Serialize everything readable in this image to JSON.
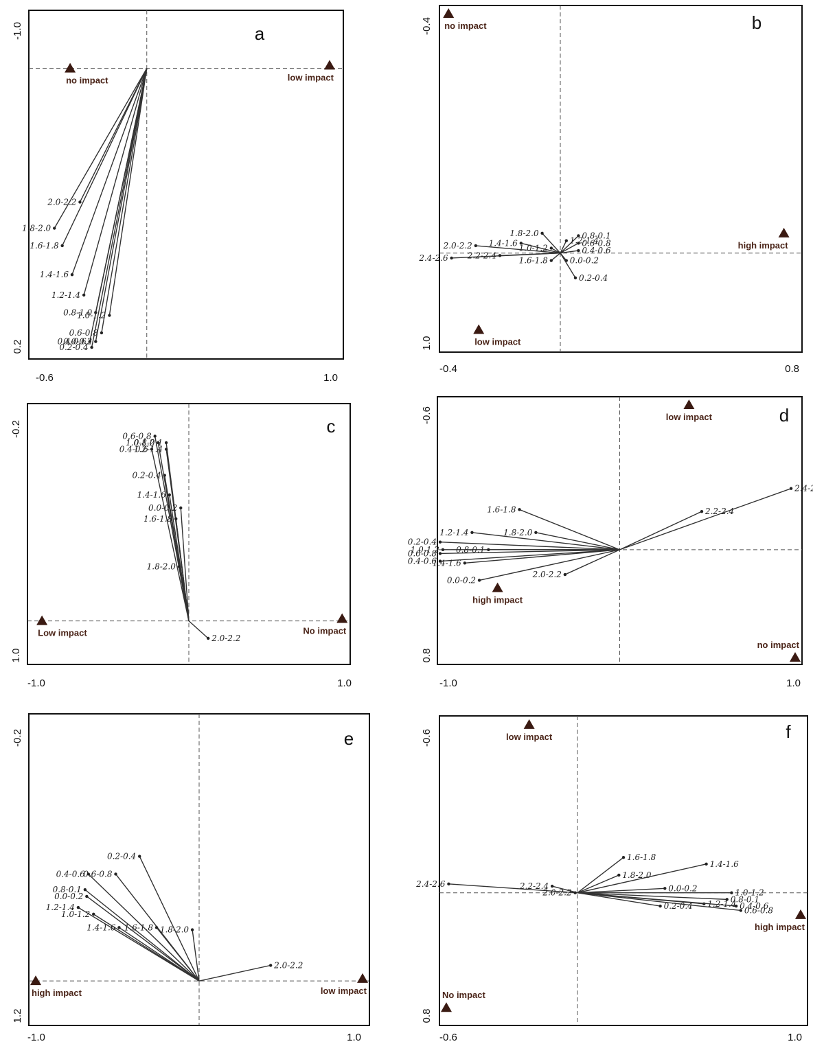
{
  "chart_data": [
    {
      "panel": "a",
      "type": "scatter",
      "xlim": [
        -0.6,
        1.0
      ],
      "ylim": [
        -1.0,
        0.2
      ],
      "x_tick_labels": [
        "-0.6",
        "1.0"
      ],
      "y_tick_labels": [
        "-1.0",
        "0.2"
      ],
      "origin": [
        0.0,
        0.0
      ],
      "treatments": [
        {
          "label": "no impact",
          "x": -0.39,
          "y": 0.0
        },
        {
          "label": "low impact",
          "x": 0.93,
          "y": 0.01
        }
      ],
      "vectors": [
        {
          "label": "2.0-2.2",
          "x": -0.34,
          "y": -0.46
        },
        {
          "label": "1.8-2.0",
          "x": -0.47,
          "y": -0.55
        },
        {
          "label": "1.6-1.8",
          "x": -0.43,
          "y": -0.61
        },
        {
          "label": "1.4-1.6",
          "x": -0.38,
          "y": -0.71
        },
        {
          "label": "1.2-1.4",
          "x": -0.32,
          "y": -0.78
        },
        {
          "label": "1.0-1.2",
          "x": -0.19,
          "y": -0.85
        },
        {
          "label": "0.8-1.0",
          "x": -0.26,
          "y": -0.84
        },
        {
          "label": "0.6-0.8",
          "x": -0.23,
          "y": -0.91
        },
        {
          "label": "0.4-0.6",
          "x": -0.29,
          "y": -0.94
        },
        {
          "label": "0.0-0.2",
          "x": -0.26,
          "y": -0.94
        },
        {
          "label": "0.2-0.4",
          "x": -0.28,
          "y": -0.96
        }
      ]
    },
    {
      "panel": "b",
      "type": "scatter",
      "xlim": [
        -0.4,
        0.8
      ],
      "ylim": [
        -0.4,
        1.0
      ],
      "x_tick_labels": [
        "-0.4",
        "0.8"
      ],
      "y_tick_labels": [
        "-0.4",
        "1.0"
      ],
      "origin": [
        0.0,
        0.0
      ],
      "treatments": [
        {
          "label": "no impact",
          "x": -0.37,
          "y": 0.97
        },
        {
          "label": "low impact",
          "x": -0.27,
          "y": -0.31
        },
        {
          "label": "high impact",
          "x": 0.74,
          "y": 0.08
        }
      ],
      "vectors": [
        {
          "label": "1.8-2.0",
          "x": -0.06,
          "y": 0.08
        },
        {
          "label": "0.8-0.1",
          "x": 0.06,
          "y": 0.07
        },
        {
          "label": "1.2-1.4",
          "x": 0.02,
          "y": 0.05
        },
        {
          "label": "0.6-0.8",
          "x": 0.06,
          "y": 0.04
        },
        {
          "label": "1.4-1.6",
          "x": -0.13,
          "y": 0.04
        },
        {
          "label": "1.0-1.2",
          "x": -0.03,
          "y": 0.02
        },
        {
          "label": "2.0-2.2",
          "x": -0.28,
          "y": 0.03
        },
        {
          "label": "0.4-0.6",
          "x": 0.06,
          "y": 0.01
        },
        {
          "label": "2.4-2.6",
          "x": -0.36,
          "y": -0.02
        },
        {
          "label": "2.2-2.4",
          "x": -0.2,
          "y": -0.01
        },
        {
          "label": "0.0-0.2",
          "x": 0.02,
          "y": -0.03
        },
        {
          "label": "1.6-1.8",
          "x": -0.03,
          "y": -0.03
        },
        {
          "label": "0.2-0.4",
          "x": 0.05,
          "y": -0.1
        }
      ]
    },
    {
      "panel": "c",
      "type": "scatter",
      "xlim": [
        -1.0,
        1.0
      ],
      "ylim": [
        -0.2,
        1.0
      ],
      "x_tick_labels": [
        "-1.0",
        "1.0"
      ],
      "y_tick_labels": [
        "-0.2",
        "1.0"
      ],
      "origin": [
        0.0,
        0.0
      ],
      "treatments": [
        {
          "label": "Low impact",
          "x": -0.91,
          "y": 0.0
        },
        {
          "label": "No impact",
          "x": 0.95,
          "y": 0.01
        }
      ],
      "vectors": [
        {
          "label": "0.6-0.8",
          "x": -0.21,
          "y": 0.85
        },
        {
          "label": "1.0-1.2",
          "x": -0.19,
          "y": 0.82
        },
        {
          "label": "0.8-0.1",
          "x": -0.14,
          "y": 0.82
        },
        {
          "label": "0.4-0.6",
          "x": -0.23,
          "y": 0.79
        },
        {
          "label": "1.2-1.4",
          "x": -0.14,
          "y": 0.79
        },
        {
          "label": "0.2-0.4",
          "x": -0.15,
          "y": 0.67
        },
        {
          "label": "1.4-1.6",
          "x": -0.12,
          "y": 0.58
        },
        {
          "label": "0.0-0.2",
          "x": -0.05,
          "y": 0.52
        },
        {
          "label": "1.6-1.8",
          "x": -0.08,
          "y": 0.47
        },
        {
          "label": "1.8-2.0",
          "x": -0.06,
          "y": 0.25
        },
        {
          "label": "2.0-2.2",
          "x": 0.12,
          "y": -0.08
        }
      ]
    },
    {
      "panel": "d",
      "type": "scatter",
      "xlim": [
        -1.0,
        1.0
      ],
      "ylim": [
        -0.6,
        0.8
      ],
      "x_tick_labels": [
        "-1.0",
        "1.0"
      ],
      "y_tick_labels": [
        "-0.6",
        "0.8"
      ],
      "origin": [
        0.0,
        0.0
      ],
      "treatments": [
        {
          "label": "low impact",
          "x": 0.38,
          "y": 0.77
        },
        {
          "label": "high impact",
          "x": -0.67,
          "y": -0.2
        },
        {
          "label": "no impact",
          "x": 1.95,
          "y": -0.6
        }
      ],
      "vectors": [
        {
          "label": "1.6-1.8",
          "x": -0.55,
          "y": 0.21
        },
        {
          "label": "1.8-2.0",
          "x": -0.46,
          "y": 0.09
        },
        {
          "label": "2.2-2.4",
          "x": 0.45,
          "y": 0.2
        },
        {
          "label": "2.4-2.6",
          "x": 0.94,
          "y": 0.32
        },
        {
          "label": "1.2-1.4",
          "x": -0.81,
          "y": 0.09
        },
        {
          "label": "0.2-0.4",
          "x": -1.03,
          "y": 0.04
        },
        {
          "label": "1.0-1.2",
          "x": -0.97,
          "y": 0.0
        },
        {
          "label": "0.8-0.1",
          "x": -0.72,
          "y": 0.0
        },
        {
          "label": "0.6-0.8",
          "x": -1.03,
          "y": -0.02
        },
        {
          "label": "0.4-0.6",
          "x": -1.12,
          "y": -0.06
        },
        {
          "label": "1.4-1.6",
          "x": -0.85,
          "y": -0.07
        },
        {
          "label": "2.0-2.2",
          "x": -0.3,
          "y": -0.13
        },
        {
          "label": "0.0-0.2",
          "x": -0.77,
          "y": -0.16
        }
      ]
    },
    {
      "panel": "e",
      "type": "scatter",
      "xlim": [
        -1.0,
        1.0
      ],
      "ylim": [
        -0.2,
        1.2
      ],
      "x_tick_labels": [
        "-1.0",
        "1.0"
      ],
      "y_tick_labels": [
        "-0.2",
        "1.2"
      ],
      "origin": [
        0.0,
        0.0
      ],
      "treatments": [
        {
          "label": "high impact",
          "x": -0.97,
          "y": 0.0
        },
        {
          "label": "low impact",
          "x": 0.97,
          "y": 0.01
        }
      ],
      "vectors": [
        {
          "label": "0.2-0.4",
          "x": -0.35,
          "y": 0.56
        },
        {
          "label": "0.4-0.6",
          "x": -0.65,
          "y": 0.48
        },
        {
          "label": "0.6-0.8",
          "x": -0.49,
          "y": 0.48
        },
        {
          "label": "0.8-0.1",
          "x": -0.67,
          "y": 0.41
        },
        {
          "label": "0.0-0.2",
          "x": -0.66,
          "y": 0.38
        },
        {
          "label": "1.2-1.4",
          "x": -0.71,
          "y": 0.33
        },
        {
          "label": "1.0-1.2",
          "x": -0.62,
          "y": 0.3
        },
        {
          "label": "1.4-1.6",
          "x": -0.47,
          "y": 0.24
        },
        {
          "label": "1.6-1.8",
          "x": -0.25,
          "y": 0.24
        },
        {
          "label": "1.8-2.0",
          "x": -0.04,
          "y": 0.23
        },
        {
          "label": "2.0-2.2",
          "x": 0.42,
          "y": 0.07
        }
      ]
    },
    {
      "panel": "f",
      "type": "scatter",
      "xlim": [
        -0.6,
        1.0
      ],
      "ylim": [
        -0.6,
        0.8
      ],
      "x_tick_labels": [
        "-0.6",
        "1.0"
      ],
      "y_tick_labels": [
        "-0.6",
        "0.8"
      ],
      "origin": [
        0.0,
        0.0
      ],
      "treatments": [
        {
          "label": "low impact",
          "x": -0.21,
          "y": 0.76
        },
        {
          "label": "high impact",
          "x": 1.01,
          "y": -0.1
        },
        {
          "label": "No impact",
          "x": -0.76,
          "y": -0.52
        }
      ],
      "vectors": [
        {
          "label": "1.6-1.8",
          "x": 0.2,
          "y": 0.16
        },
        {
          "label": "1.8-2.0",
          "x": 0.18,
          "y": 0.08
        },
        {
          "label": "1.4-1.6",
          "x": 0.56,
          "y": 0.13
        },
        {
          "label": "2.2-2.4",
          "x": -0.11,
          "y": 0.03
        },
        {
          "label": "2.4-2.6",
          "x": -0.56,
          "y": 0.04
        },
        {
          "label": "0.0-0.2",
          "x": 0.38,
          "y": 0.02
        },
        {
          "label": "1.0-1.2",
          "x": 0.67,
          "y": 0.0
        },
        {
          "label": "0.8-0.1",
          "x": 0.65,
          "y": -0.03
        },
        {
          "label": "1.2-1.4",
          "x": 0.55,
          "y": -0.05
        },
        {
          "label": "0.4-0.6",
          "x": 0.69,
          "y": -0.06
        },
        {
          "label": "0.2-0.4",
          "x": 0.36,
          "y": -0.06
        },
        {
          "label": "0.6-0.8",
          "x": 0.71,
          "y": -0.08
        },
        {
          "label": "2.0-2.2",
          "x": -0.01,
          "y": 0.0
        }
      ]
    }
  ]
}
